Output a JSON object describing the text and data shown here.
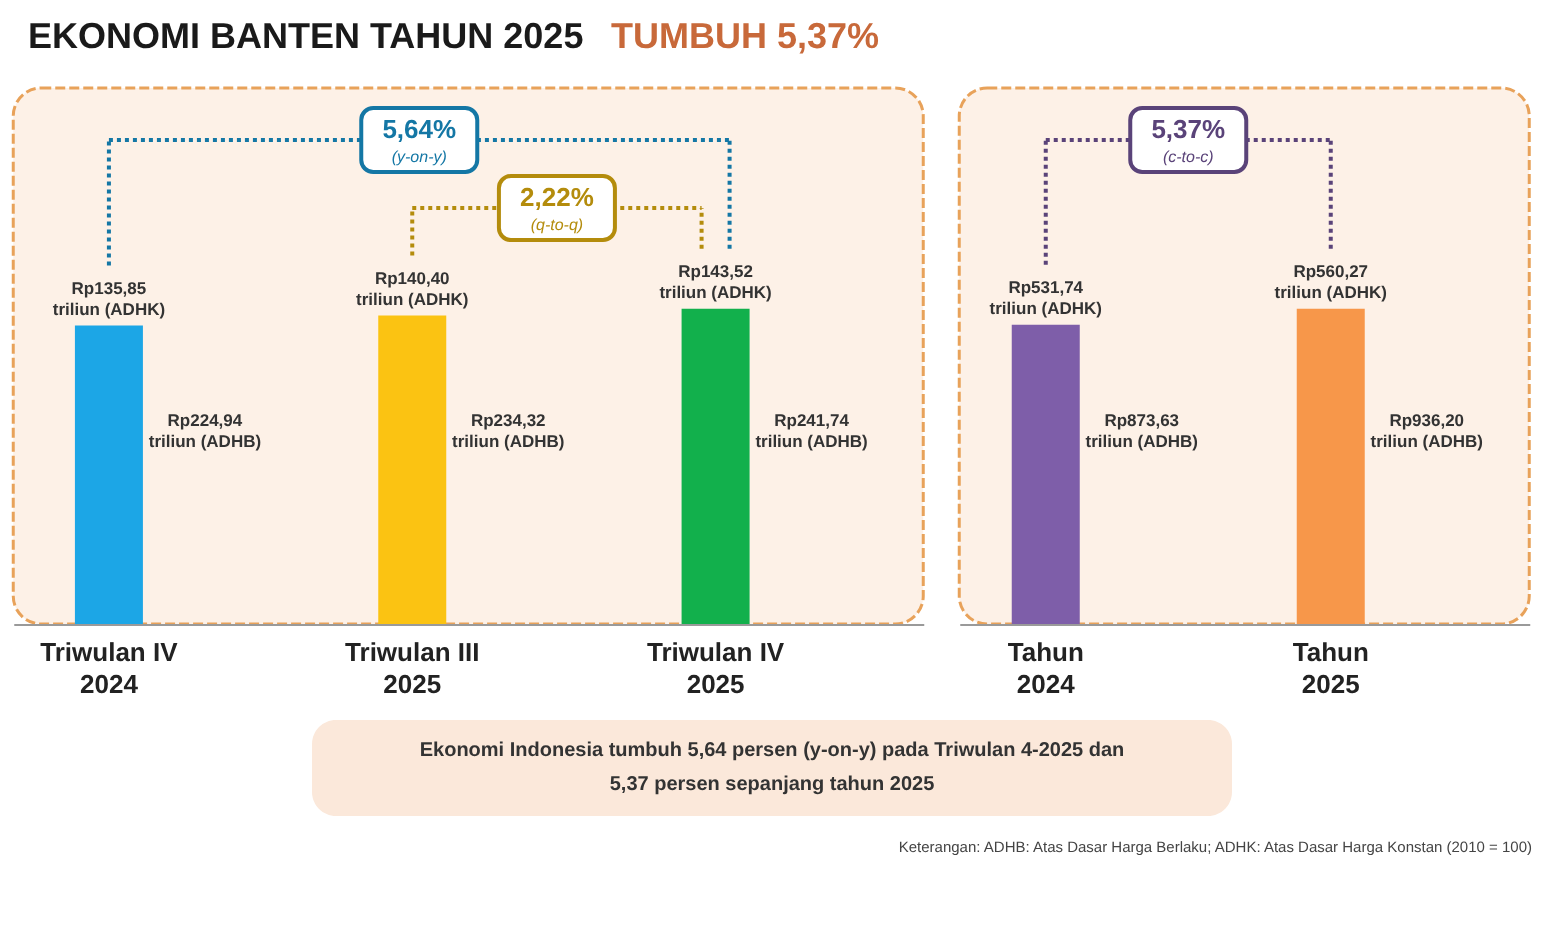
{
  "chart_data": [
    {
      "type": "bar",
      "title": "EKONOMI BANTEN TAHUN 2025",
      "subtitle": "TUMBUH 5,37%",
      "categories": [
        "Triwulan IV 2024",
        "Triwulan III 2025",
        "Triwulan IV 2025"
      ],
      "values": [
        135.85,
        140.4,
        143.52
      ],
      "colors": [
        "#1ca6e6",
        "#fbc312",
        "#12b04c"
      ],
      "value_labels": [
        "Rp135,85 triliun (ADHK)",
        "Rp140,40 triliun (ADHK)",
        "Rp143,52 triliun (ADHK)"
      ],
      "annotations": [
        "5,64% (y-on-y)",
        "2,22% (q-to-q)",
        "Rp224,94 triliun (ADHB)",
        "Rp234,32 triliun (ADHB)",
        "Rp241,74 triliun (ADHB)"
      ]
    },
    {
      "type": "bar",
      "categories": [
        "Tahun 2024",
        "Tahun 2025"
      ],
      "values": [
        531.74,
        560.27
      ],
      "colors": [
        "#7e5ea9",
        "#f7974a"
      ],
      "value_labels": [
        "Rp531,74 triliun (ADHK)",
        "Rp560,27 triliun (ADHK)"
      ],
      "annotations": [
        "5,37% (c-to-c)",
        "Rp873,63 triliun (ADHB)",
        "Rp936,20 triliun (ADHB)"
      ]
    },
    {
      "type": "other",
      "annotations": [
        "Ekonomi Indonesia tumbuh 5,64 persen (y-on-y) pada Triwulan 4-2025 dan",
        "5,37 persen sepanjang tahun 2025",
        "Keterangan: ADHB: Atas Dasar Harga Berlaku; ADHK: Atas Dasar Harga Konstan (2010 = 100)"
      ]
    }
  ]
}
